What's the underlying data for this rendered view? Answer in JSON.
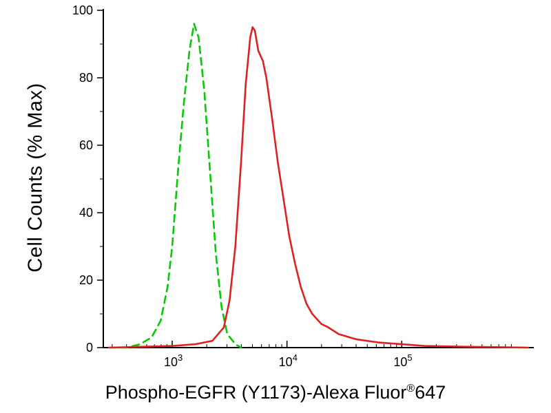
{
  "chart_data": {
    "type": "line",
    "title": "",
    "xlabel_before": "Phospho-EGFR (Y1173)-Alexa Fluor",
    "xlabel_registered_mark": "®",
    "xlabel_after": "647",
    "ylabel": "Cell Counts (% Max)",
    "x_scale": "log",
    "x_range_log10": [
      2.4,
      6.15
    ],
    "x_major_ticks_log10": [
      3,
      4,
      5
    ],
    "x_tick_base": "10",
    "ylim": [
      0,
      100
    ],
    "y_major_ticks": [
      0,
      20,
      40,
      60,
      80,
      100
    ],
    "y_minor_step": 10,
    "grid": false,
    "legend": "none",
    "series": [
      {
        "name": "control-green-dashed",
        "color": "#00cc00",
        "style": "dashed",
        "peak_x": 1550,
        "peak_y": 96,
        "points_log10x_y": [
          [
            2.45,
            0
          ],
          [
            2.6,
            0
          ],
          [
            2.72,
            1
          ],
          [
            2.82,
            3
          ],
          [
            2.9,
            8
          ],
          [
            2.96,
            18
          ],
          [
            3.0,
            30
          ],
          [
            3.05,
            52
          ],
          [
            3.1,
            72
          ],
          [
            3.15,
            88
          ],
          [
            3.19,
            96
          ],
          [
            3.23,
            92
          ],
          [
            3.28,
            76
          ],
          [
            3.33,
            52
          ],
          [
            3.38,
            28
          ],
          [
            3.43,
            12
          ],
          [
            3.48,
            4
          ],
          [
            3.55,
            1
          ],
          [
            3.6,
            0
          ]
        ]
      },
      {
        "name": "stimulated-red-solid",
        "color": "#e02020",
        "style": "solid",
        "peak_x": 5000,
        "peak_y": 95,
        "points_log10x_y": [
          [
            2.45,
            0
          ],
          [
            3.0,
            0.5
          ],
          [
            3.2,
            1
          ],
          [
            3.35,
            2
          ],
          [
            3.45,
            6
          ],
          [
            3.5,
            14
          ],
          [
            3.55,
            30
          ],
          [
            3.6,
            55
          ],
          [
            3.64,
            78
          ],
          [
            3.68,
            92
          ],
          [
            3.7,
            95
          ],
          [
            3.72,
            94
          ],
          [
            3.75,
            88
          ],
          [
            3.79,
            85
          ],
          [
            3.82,
            80
          ],
          [
            3.87,
            68
          ],
          [
            3.92,
            55
          ],
          [
            3.97,
            44
          ],
          [
            4.02,
            33
          ],
          [
            4.07,
            25
          ],
          [
            4.12,
            18
          ],
          [
            4.17,
            13
          ],
          [
            4.22,
            10
          ],
          [
            4.3,
            7
          ],
          [
            4.36,
            6
          ],
          [
            4.45,
            4
          ],
          [
            4.6,
            2.5
          ],
          [
            4.8,
            1.5
          ],
          [
            5.0,
            1
          ],
          [
            5.2,
            0.5
          ],
          [
            5.5,
            0.3
          ],
          [
            6.1,
            0
          ]
        ]
      }
    ]
  }
}
